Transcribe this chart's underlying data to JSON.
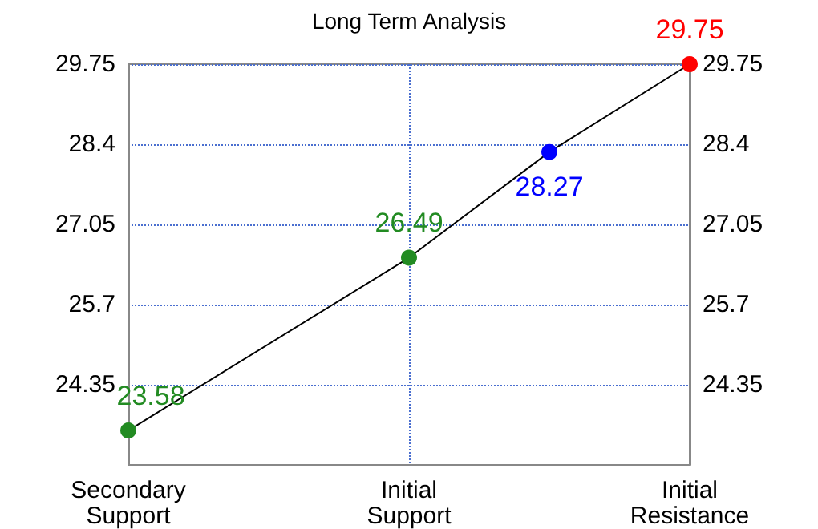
{
  "chart_data": {
    "type": "line",
    "title": "Long Term Analysis",
    "categories": [
      "Secondary\nSupport",
      null,
      "Initial\nSupport",
      null,
      "Initial\nResistance"
    ],
    "series": [
      {
        "color": "#000000",
        "values": [
          23.58,
          null,
          26.49,
          28.27,
          29.75
        ],
        "colors": [
          "#228b22",
          null,
          "#228b22",
          "#0000ff",
          "#ff0000"
        ]
      }
    ],
    "ylim": [
      23,
      29.75
    ],
    "yticks": [
      24.35,
      25.7,
      27.05,
      28.4,
      29.75
    ],
    "y2lim": [
      23,
      29.75
    ],
    "y2ticks": [
      24.35,
      25.7,
      27.05,
      28.4,
      29.75
    ],
    "grid": true,
    "marker": "circle",
    "data_labels": true
  }
}
